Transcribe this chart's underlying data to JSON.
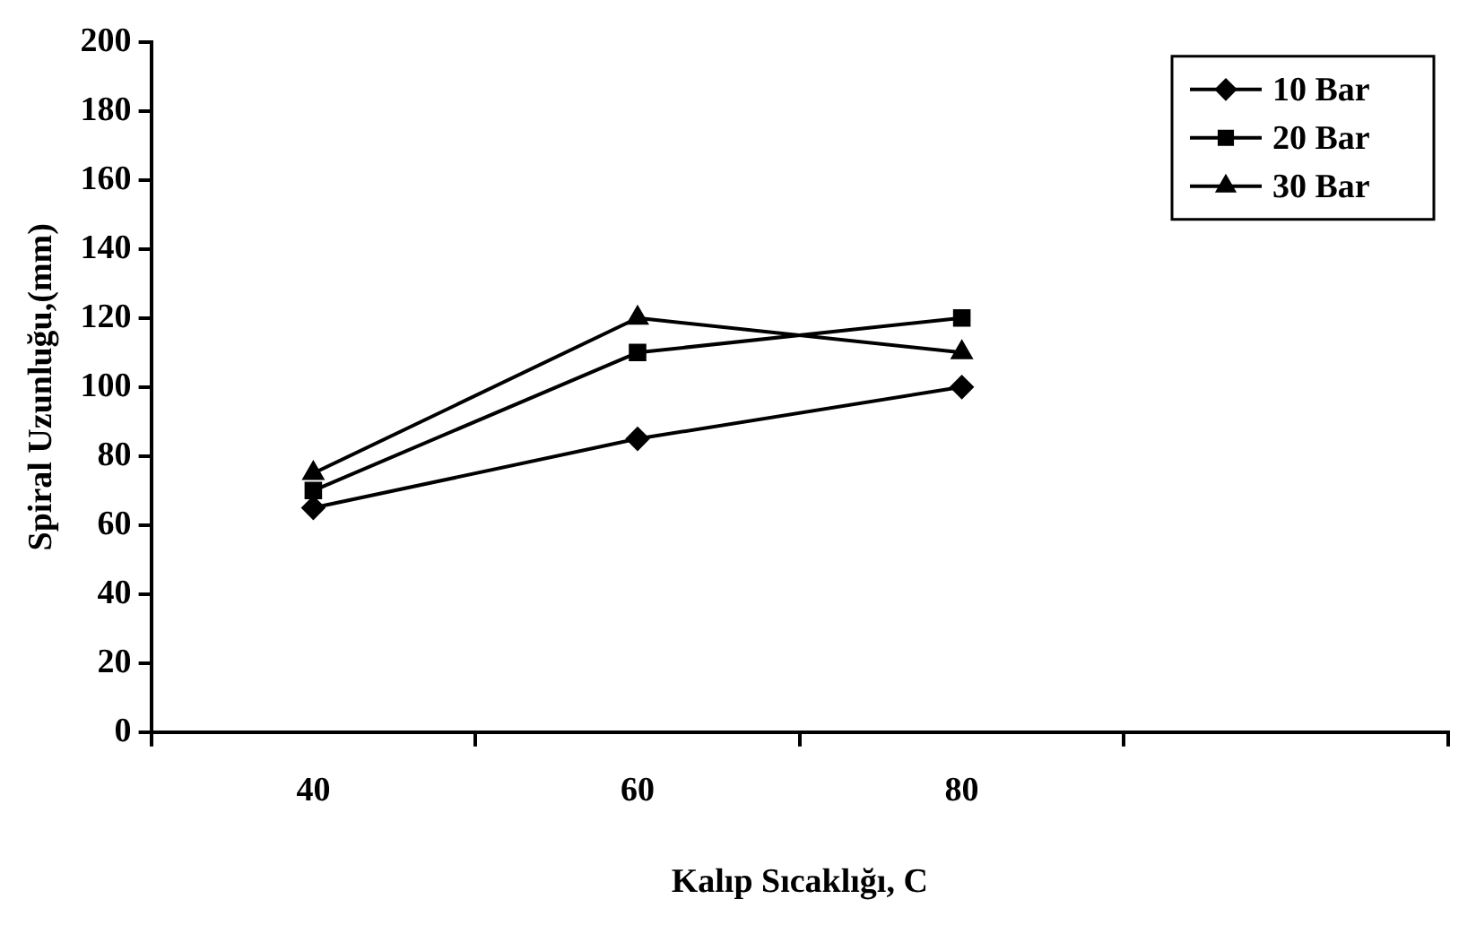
{
  "chart_data": {
    "type": "line",
    "xlabel": "Kalıp Sıcaklığı, C",
    "ylabel": "Spiral Uzunluğu,(mm)",
    "categories": [
      "40",
      "60",
      "80",
      null
    ],
    "series": [
      {
        "name": "10 Bar",
        "color": "#000000",
        "marker": "diamond",
        "values": [
          65,
          85,
          100,
          null
        ]
      },
      {
        "name": "20 Bar",
        "color": "#000000",
        "marker": "square",
        "values": [
          70,
          110,
          120,
          null
        ]
      },
      {
        "name": "30 Bar",
        "color": "#000000",
        "marker": "triangle",
        "values": [
          75,
          120,
          110,
          null
        ]
      }
    ],
    "ylim": [
      0,
      200
    ],
    "yticks": [
      0,
      20,
      40,
      60,
      80,
      100,
      120,
      140,
      160,
      180,
      200
    ],
    "grid": false,
    "legend": "top right",
    "line_style": "solid"
  }
}
